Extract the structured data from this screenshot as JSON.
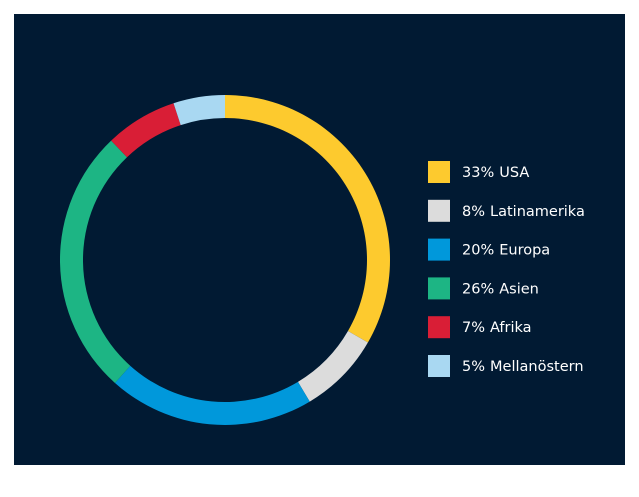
{
  "chart_data": {
    "type": "donut",
    "categories": [
      "USA",
      "Latinamerika",
      "Europa",
      "Asien",
      "Afrika",
      "Mellanöstern"
    ],
    "values": [
      33,
      8,
      20,
      26,
      7,
      5
    ],
    "value_labels": [
      "33%",
      "8%",
      "20%",
      "26%",
      "7%",
      "5%"
    ],
    "colors": [
      "#fdca2e",
      "#dcdcdc",
      "#0098db",
      "#1db584",
      "#d91e36",
      "#a9d8f2"
    ],
    "legend": "right"
  }
}
